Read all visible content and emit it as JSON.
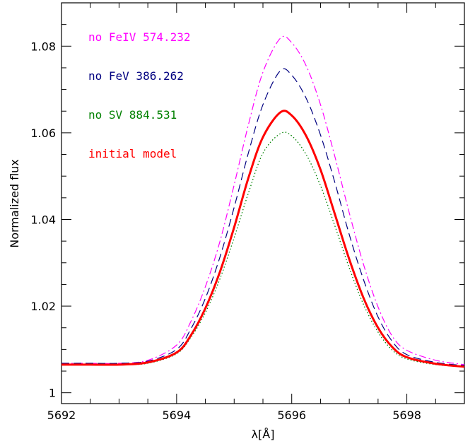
{
  "chart_data": {
    "type": "line",
    "xlabel": "λ[Å]",
    "ylabel": "Normalized flux",
    "xlim": [
      5692,
      5699
    ],
    "ylim": [
      0.9975,
      1.09
    ],
    "x_ticks": [
      5692,
      5694,
      5696,
      5698
    ],
    "x_tick_labels": [
      "5692",
      "5694",
      "5696",
      "5698"
    ],
    "y_ticks": [
      1.0,
      1.02,
      1.04,
      1.06,
      1.08
    ],
    "y_tick_labels": [
      "1",
      "1.02",
      "1.04",
      "1.06",
      "1.08"
    ],
    "grid": false,
    "legend_position": "top-left",
    "x": [
      5692.0,
      5692.5,
      5693.0,
      5693.5,
      5694.0,
      5694.25,
      5694.5,
      5694.75,
      5695.0,
      5695.25,
      5695.5,
      5695.8,
      5696.0,
      5696.25,
      5696.5,
      5696.75,
      5697.0,
      5697.25,
      5697.5,
      5697.75,
      5698.0,
      5698.5,
      5699.0
    ],
    "series": [
      {
        "name": "no FeIV 574.232",
        "color": "#ff00ff",
        "style": "dash-dot",
        "values": [
          1.0068,
          1.0068,
          1.0068,
          1.0075,
          1.011,
          1.0165,
          1.0245,
          1.0348,
          1.048,
          1.062,
          1.074,
          1.0818,
          1.0808,
          1.0755,
          1.0665,
          1.0545,
          1.0415,
          1.0295,
          1.0198,
          1.013,
          1.0098,
          1.0075,
          1.0065
        ]
      },
      {
        "name": "no FeV 386.262",
        "color": "#000080",
        "style": "dashed",
        "values": [
          1.0068,
          1.0068,
          1.0068,
          1.0073,
          1.01,
          1.0148,
          1.0218,
          1.0312,
          1.0428,
          1.0555,
          1.0665,
          1.0743,
          1.0733,
          1.068,
          1.0595,
          1.0485,
          1.0365,
          1.026,
          1.0175,
          1.0118,
          1.0088,
          1.007,
          1.0063
        ]
      },
      {
        "name": "no SV 884.531",
        "color": "#008000",
        "style": "dotted",
        "values": [
          1.0065,
          1.0065,
          1.0065,
          1.0068,
          1.009,
          1.0128,
          1.0185,
          1.0262,
          1.0358,
          1.0462,
          1.0553,
          1.0598,
          1.0593,
          1.055,
          1.0478,
          1.0385,
          1.0288,
          1.0203,
          1.014,
          1.0098,
          1.0078,
          1.0065,
          1.006
        ]
      },
      {
        "name": "initial model",
        "color": "#ff0000",
        "style": "solid-thick",
        "values": [
          1.0065,
          1.0065,
          1.0065,
          1.007,
          1.0093,
          1.0133,
          1.0195,
          1.0278,
          1.0382,
          1.0497,
          1.059,
          1.0647,
          1.064,
          1.0593,
          1.0515,
          1.0412,
          1.0308,
          1.0218,
          1.015,
          1.0105,
          1.0082,
          1.0067,
          1.006
        ]
      }
    ]
  }
}
